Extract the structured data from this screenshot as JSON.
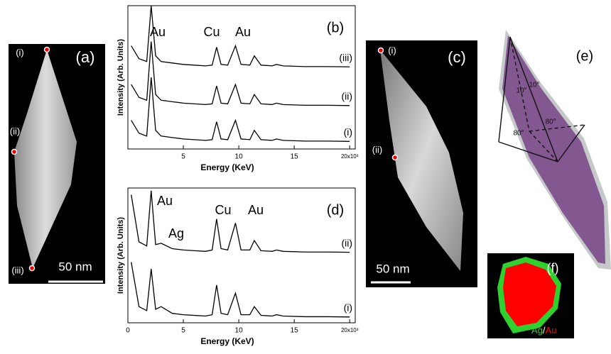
{
  "chart_data": [
    {
      "type": "line",
      "label": "(b)",
      "xlabel": "Energy (KeV)",
      "ylabel": "Intensity (Arb. Units)",
      "annotations": [
        "Au",
        "Cu",
        "Au"
      ],
      "x": [
        0.3,
        1,
        1.7,
        2.1,
        2.5,
        3,
        4,
        5,
        6,
        7,
        7.6,
        8.0,
        8.4,
        9,
        9.7,
        10.2,
        11,
        11.4,
        12,
        13,
        13.4,
        14,
        16,
        18,
        20
      ],
      "xlim": [
        0,
        20.5
      ],
      "xticks": [
        5,
        10,
        15,
        {
          "value": 20,
          "label": "20x10³"
        }
      ],
      "ylim": [
        0,
        100
      ],
      "series": [
        {
          "name": "(iii)",
          "color": "#000000",
          "values": [
            72,
            63,
            61,
            100,
            65,
            61,
            60,
            59,
            58.5,
            58,
            58.5,
            71,
            59,
            58.5,
            72,
            59,
            58.5,
            65,
            58.5,
            58,
            59,
            58,
            57.5,
            57.5,
            57.3
          ]
        },
        {
          "name": "(ii)",
          "color": "#000000",
          "values": [
            45,
            36,
            34,
            75,
            38,
            34,
            33,
            32,
            31.5,
            31,
            31.5,
            44,
            32,
            31.5,
            45,
            32,
            31.5,
            38,
            31.5,
            31,
            32,
            31,
            30.5,
            30.5,
            30.3
          ]
        },
        {
          "name": "(i)",
          "color": "#000000",
          "values": [
            20,
            11,
            9,
            50,
            13,
            9,
            8,
            7,
            6.5,
            6,
            6.5,
            19,
            7,
            6.5,
            20,
            7,
            6.5,
            13,
            6.5,
            6,
            7,
            6,
            5.5,
            5.5,
            5.3
          ]
        }
      ]
    },
    {
      "type": "line",
      "label": "(d)",
      "xlabel": "Energy (KeV)",
      "ylabel": "Intensity (Arb. Units)",
      "annotations": [
        "Au",
        "Ag",
        "Cu",
        "Au"
      ],
      "x": [
        0.3,
        1,
        1.7,
        2.1,
        2.5,
        3,
        4,
        5,
        6,
        7,
        7.6,
        8.0,
        8.4,
        9,
        9.7,
        10.2,
        11,
        11.4,
        12,
        13,
        13.4,
        14,
        16,
        18,
        20
      ],
      "xlim": [
        0,
        20.5
      ],
      "xticks": [
        0,
        5,
        10,
        15,
        {
          "value": 20,
          "label": "20x10³"
        }
      ],
      "ylim": [
        0,
        100
      ],
      "series": [
        {
          "name": "(ii)",
          "color": "#000000",
          "values": [
            95,
            60,
            57,
            98,
            58,
            59,
            55,
            54,
            53.5,
            53,
            54,
            77,
            55,
            54,
            74,
            54,
            54,
            61,
            53.5,
            53,
            54,
            53,
            52.5,
            52.5,
            52.3
          ]
        },
        {
          "name": "(i)",
          "color": "#000000",
          "values": [
            45,
            12,
            9,
            40,
            10,
            12,
            7,
            6,
            5.5,
            5,
            6,
            28,
            7,
            6,
            22,
            6,
            6,
            12,
            5.5,
            5,
            6,
            5,
            4.5,
            4.5,
            4.3
          ]
        }
      ]
    }
  ],
  "panels": {
    "a": {
      "label": "(a)",
      "points": [
        "(i)",
        "(ii)",
        "(iii)"
      ],
      "scale": "50 nm"
    },
    "c": {
      "label": "(c)",
      "points": [
        "(i)",
        "(ii)"
      ],
      "scale": "50 nm"
    },
    "e": {
      "label": "(e)",
      "angles": [
        "10°",
        "10°",
        "80°",
        "80°"
      ]
    },
    "f": {
      "label": "(f)",
      "legend": [
        "Ag",
        "/",
        "Au"
      ]
    }
  }
}
